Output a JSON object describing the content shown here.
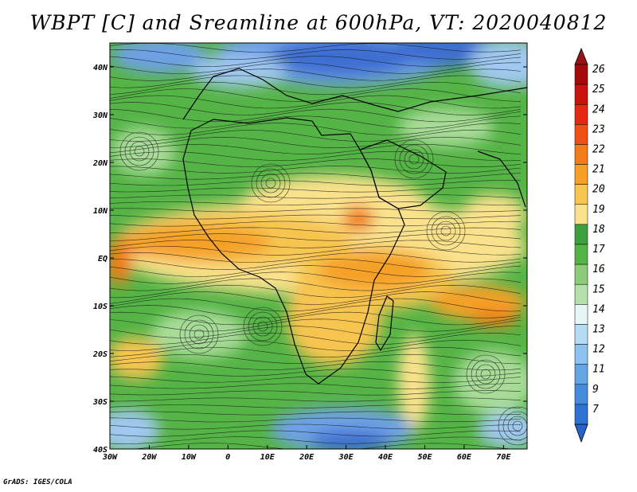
{
  "title": "WBPT [C] and Sreamline at 600hPa, VT: 2020040812",
  "credit": "GrADS: IGES/COLA",
  "map": {
    "lon_range": [
      -30,
      76
    ],
    "lat_range": [
      -40,
      45
    ],
    "x_ticks": [
      {
        "value": -30,
        "label": "30W"
      },
      {
        "value": -20,
        "label": "20W"
      },
      {
        "value": -10,
        "label": "10W"
      },
      {
        "value": 0,
        "label": "0"
      },
      {
        "value": 10,
        "label": "10E"
      },
      {
        "value": 20,
        "label": "20E"
      },
      {
        "value": 30,
        "label": "30E"
      },
      {
        "value": 40,
        "label": "40E"
      },
      {
        "value": 50,
        "label": "50E"
      },
      {
        "value": 60,
        "label": "60E"
      },
      {
        "value": 70,
        "label": "70E"
      }
    ],
    "y_ticks": [
      {
        "value": 40,
        "label": "40N"
      },
      {
        "value": 30,
        "label": "30N"
      },
      {
        "value": 20,
        "label": "20N"
      },
      {
        "value": 10,
        "label": "10N"
      },
      {
        "value": 0,
        "label": "EQ"
      },
      {
        "value": -10,
        "label": "10S"
      },
      {
        "value": -20,
        "label": "20S"
      },
      {
        "value": -30,
        "label": "30S"
      },
      {
        "value": -40,
        "label": "40S"
      }
    ]
  },
  "colorbar": {
    "levels": [
      {
        "label": "26",
        "color": "#a50a0a"
      },
      {
        "label": "25",
        "color": "#c8140c"
      },
      {
        "label": "24",
        "color": "#e62810"
      },
      {
        "label": "23",
        "color": "#f05014"
      },
      {
        "label": "22",
        "color": "#f57d19"
      },
      {
        "label": "21",
        "color": "#f5a028"
      },
      {
        "label": "20",
        "color": "#f7c450"
      },
      {
        "label": "19",
        "color": "#fae28c"
      },
      {
        "label": "18",
        "color": "#3ca03c"
      },
      {
        "label": "17",
        "color": "#55b446"
      },
      {
        "label": "16",
        "color": "#8ccc78"
      },
      {
        "label": "15",
        "color": "#b4e0aa"
      },
      {
        "label": "14",
        "color": "#e6f5f5"
      },
      {
        "label": "13",
        "color": "#b4dcf5"
      },
      {
        "label": "12",
        "color": "#8cc3f0"
      },
      {
        "label": "11",
        "color": "#64a5e6"
      },
      {
        "label": "9",
        "color": "#468cdc"
      },
      {
        "label": "7",
        "color": "#2d73d2"
      }
    ],
    "top_color": "#961414",
    "bottom_color": "#2864c8"
  },
  "field_colors": {
    "deep_blue": "#3c6ed2",
    "mid_blue": "#6ea0e6",
    "light_blue": "#a0c8f0",
    "pale_green": "#a8dc98",
    "green": "#55b446",
    "dark_green": "#3ca03c",
    "yellow": "#fae28c",
    "light_orange": "#f7c450",
    "orange": "#f5a028",
    "dark_orange": "#f07d19",
    "red": "#e65014"
  }
}
